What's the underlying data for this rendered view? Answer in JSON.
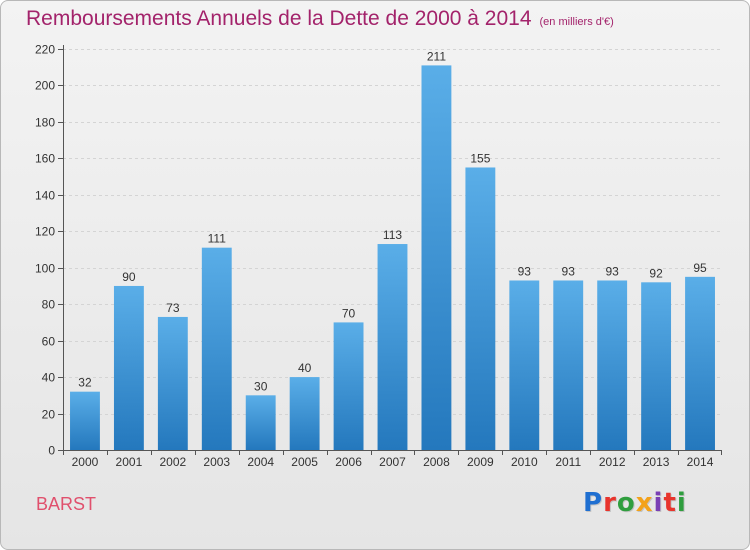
{
  "header": {
    "title": "Remboursements Annuels de la Dette de 2000 à 2014",
    "subtitle": "(en milliers d'€)"
  },
  "place": "BARST",
  "logo": {
    "text": "Proxiti",
    "colors": [
      "#1f6fd1",
      "#e8342c",
      "#2f9e3e",
      "#f3a21b",
      "#7a3fb5",
      "#e8342c",
      "#2f9e3e"
    ]
  },
  "chart_data": {
    "type": "bar",
    "title": "Remboursements Annuels de la Dette de 2000 à 2014",
    "categories": [
      "2000",
      "2001",
      "2002",
      "2003",
      "2004",
      "2005",
      "2006",
      "2007",
      "2008",
      "2009",
      "2010",
      "2011",
      "2012",
      "2013",
      "2014"
    ],
    "values": [
      32,
      90,
      73,
      111,
      30,
      40,
      70,
      113,
      211,
      155,
      93,
      93,
      93,
      92,
      95
    ],
    "ylim": [
      0,
      220
    ],
    "yticks": [
      0,
      20,
      40,
      60,
      80,
      100,
      120,
      140,
      160,
      180,
      200,
      220
    ],
    "grid": true,
    "bar_color": "#3d97dc",
    "bar_color_light": "#5aaee8",
    "bar_color_dark": "#2478bd"
  }
}
